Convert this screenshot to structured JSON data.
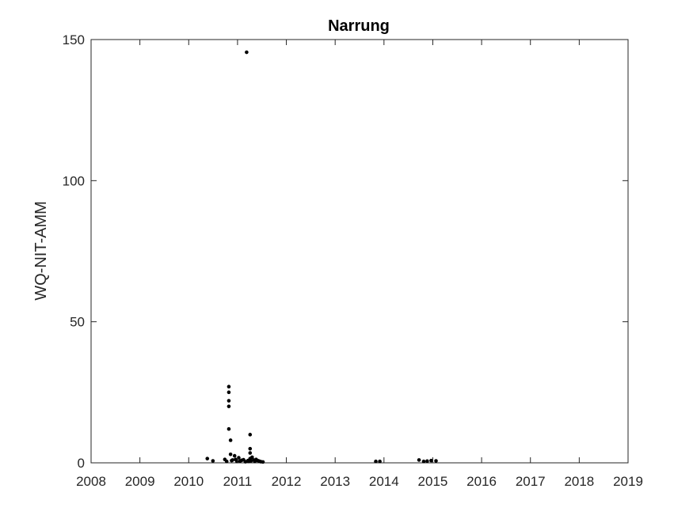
{
  "chart_data": {
    "type": "scatter",
    "title": "Narrung",
    "xlabel": "",
    "ylabel": "WQ-NIT-AMM",
    "xlim": [
      2008,
      2019
    ],
    "ylim": [
      0,
      150
    ],
    "xticks": [
      "2008",
      "2009",
      "2010",
      "2011",
      "2012",
      "2013",
      "2014",
      "2015",
      "2016",
      "2017",
      "2018",
      "2019"
    ],
    "yticks": [
      "0",
      "50",
      "100",
      "150"
    ],
    "grid": false,
    "marker_color": "#000000",
    "series": [
      {
        "x": [
          "2010-05-20",
          "2010-07-01",
          "2010-09-28",
          "2010-10-12",
          "2010-10-28",
          "2010-10-28",
          "2010-10-28",
          "2010-10-28",
          "2010-10-28",
          "2010-11-10",
          "2010-11-10",
          "2010-11-18",
          "2010-11-25",
          "2010-12-10",
          "2010-12-17",
          "2010-12-28",
          "2011-01-10",
          "2011-01-20",
          "2011-02-01",
          "2011-02-15",
          "2011-03-01",
          "2011-03-10",
          "2011-03-20",
          "2011-03-25",
          "2011-04-05",
          "2011-04-05",
          "2011-04-05",
          "2011-04-05",
          "2011-04-12",
          "2011-04-20",
          "2011-05-01",
          "2011-05-10",
          "2011-05-20",
          "2011-06-01",
          "2011-06-12",
          "2011-06-25",
          "2011-07-10",
          "2013-11-01",
          "2013-12-01",
          "2014-09-20",
          "2014-10-25",
          "2014-11-20",
          "2014-12-20",
          "2015-01-25"
        ],
        "y": [
          1.5,
          0.7,
          1.2,
          0.5,
          12,
          20,
          22,
          25,
          27,
          8,
          3,
          0.8,
          1.0,
          2.5,
          1.2,
          0.5,
          1.8,
          0.6,
          0.9,
          1.1,
          0.4,
          145.5,
          0.8,
          0.5,
          10,
          5,
          3.5,
          1.5,
          0.7,
          2.0,
          1.0,
          0.5,
          1.2,
          0.8,
          0.6,
          0.4,
          0.3,
          0.5,
          0.5,
          1.0,
          0.5,
          0.6,
          0.8,
          0.7
        ]
      }
    ]
  }
}
